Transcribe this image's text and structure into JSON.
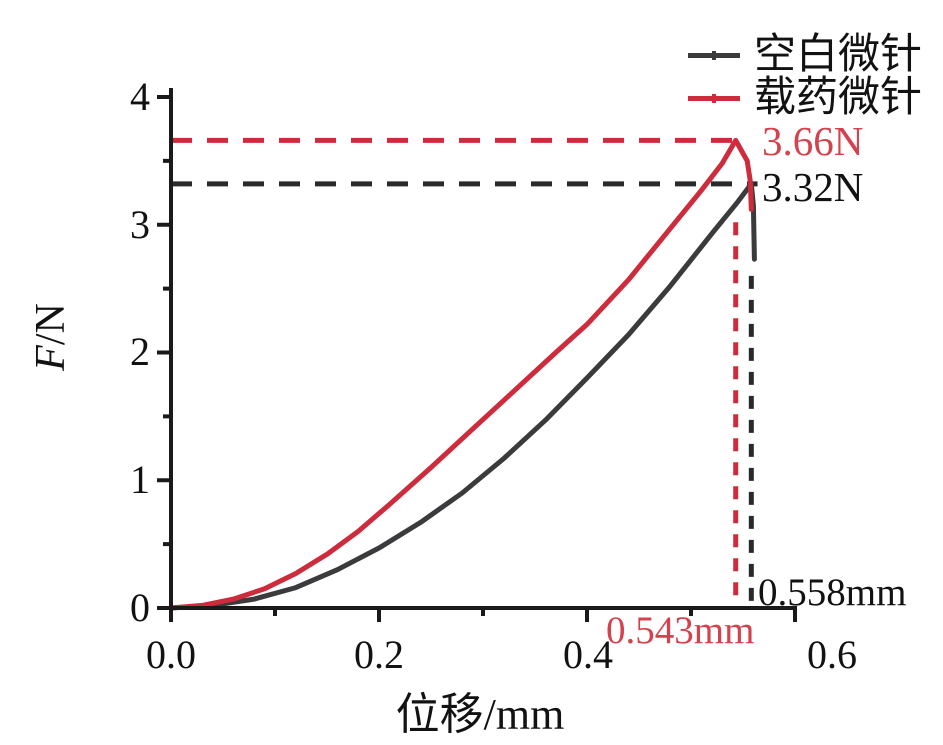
{
  "colors": {
    "red": "#ce2b3c",
    "red_text": "#d4424e",
    "black_line": "#3b3b3d",
    "axis": "#1a1a1a",
    "text": "#121212",
    "background": "#ffffff"
  },
  "legend": {
    "items": [
      {
        "label": "空白微针",
        "color": "#3b3b3d"
      },
      {
        "label": "载药微针",
        "color": "#ce2b3c"
      }
    ]
  },
  "chart_data": {
    "type": "line",
    "title": "",
    "xlabel": "位移/mm",
    "ylabel": "F/N",
    "ylabel_italic": "F",
    "ylabel_rest": "/N",
    "xlim": [
      0,
      0.6
    ],
    "ylim": [
      0,
      4
    ],
    "grid": false,
    "legend_position": "top-right",
    "x_major_ticks": [
      0,
      0.2,
      0.4,
      0.6
    ],
    "x_tick_labels": [
      "0.0",
      "0.2",
      "0.4",
      "0.6"
    ],
    "x_minor_ticks": [
      0.1,
      0.3,
      0.5
    ],
    "y_major_ticks": [
      0,
      1,
      2,
      3,
      4
    ],
    "y_tick_labels": [
      "0",
      "1",
      "2",
      "3",
      "4"
    ],
    "y_minor_ticks": [
      0.5,
      1.5,
      2.5,
      3.5
    ],
    "series": [
      {
        "name": "空白微针",
        "color": "#3b3b3d",
        "peak_force_N": 3.32,
        "peak_displacement_mm": 0.558,
        "points": [
          [
            0,
            0
          ],
          [
            0.04,
            0.02
          ],
          [
            0.08,
            0.07
          ],
          [
            0.12,
            0.16
          ],
          [
            0.16,
            0.3
          ],
          [
            0.2,
            0.47
          ],
          [
            0.24,
            0.67
          ],
          [
            0.28,
            0.9
          ],
          [
            0.32,
            1.17
          ],
          [
            0.36,
            1.47
          ],
          [
            0.4,
            1.8
          ],
          [
            0.44,
            2.14
          ],
          [
            0.48,
            2.52
          ],
          [
            0.52,
            2.93
          ],
          [
            0.545,
            3.18
          ],
          [
            0.558,
            3.32
          ],
          [
            0.56,
            3.15
          ],
          [
            0.561,
            2.73
          ]
        ]
      },
      {
        "name": "载药微针",
        "color": "#ce2b3c",
        "peak_force_N": 3.66,
        "peak_displacement_mm": 0.543,
        "points": [
          [
            0,
            0
          ],
          [
            0.03,
            0.02
          ],
          [
            0.06,
            0.07
          ],
          [
            0.09,
            0.15
          ],
          [
            0.12,
            0.27
          ],
          [
            0.15,
            0.42
          ],
          [
            0.18,
            0.6
          ],
          [
            0.21,
            0.81
          ],
          [
            0.25,
            1.1
          ],
          [
            0.29,
            1.4
          ],
          [
            0.33,
            1.7
          ],
          [
            0.37,
            2.0
          ],
          [
            0.4,
            2.22
          ],
          [
            0.44,
            2.57
          ],
          [
            0.48,
            2.97
          ],
          [
            0.51,
            3.27
          ],
          [
            0.53,
            3.48
          ],
          [
            0.543,
            3.66
          ],
          [
            0.554,
            3.5
          ],
          [
            0.557,
            3.34
          ],
          [
            0.558,
            3.12
          ]
        ]
      }
    ],
    "guides": [
      {
        "name": "red-peak-force-line",
        "orient": "h",
        "color": "#ce2b3c",
        "x1": 0,
        "y1": 3.66,
        "x2": 0.552,
        "y2": 3.66
      },
      {
        "name": "black-peak-force-line",
        "orient": "h",
        "color": "#2a2a2c",
        "x1": 0,
        "y1": 3.32,
        "x2": 0.564,
        "y2": 3.32
      },
      {
        "name": "red-peak-disp-line",
        "orient": "v",
        "color": "#ce2b3c",
        "x1": 0.543,
        "y1": 3.02,
        "x2": 0.543,
        "y2": 0
      },
      {
        "name": "black-peak-disp-line",
        "orient": "v",
        "color": "#2a2a2c",
        "x1": 0.558,
        "y1": 2.6,
        "x2": 0.558,
        "y2": 0
      }
    ],
    "annotations": {
      "red_peak_force": "3.66N",
      "black_peak_force": "3.32N",
      "red_peak_displacement": "0.543mm",
      "black_peak_displacement": "0.558mm"
    }
  }
}
